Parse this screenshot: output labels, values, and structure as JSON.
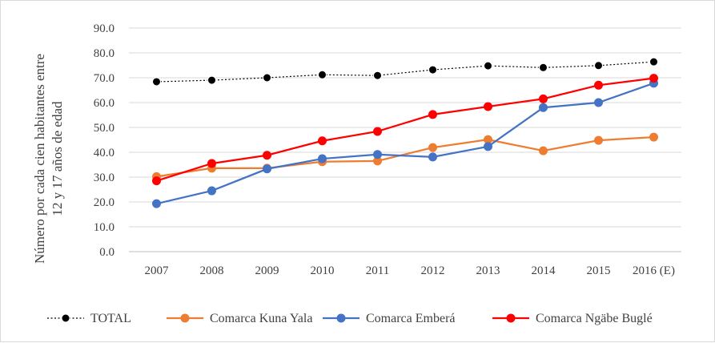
{
  "chart_data": {
    "type": "line",
    "categories": [
      "2007",
      "2008",
      "2009",
      "2010",
      "2011",
      "2012",
      "2013",
      "2014",
      "2015",
      "2016 (E)"
    ],
    "ylabel_line1": "Número por cada cien habitantes entre",
    "ylabel_line2": "12 y 17 años de edad",
    "ylim": [
      0,
      90
    ],
    "yticks": [
      "0.0",
      "10.0",
      "20.0",
      "30.0",
      "40.0",
      "50.0",
      "60.0",
      "70.0",
      "80.0",
      "90.0"
    ],
    "grid": true,
    "legend_position": "bottom",
    "series": [
      {
        "name": "TOTAL",
        "color": "#000000",
        "style": "dotted",
        "values": [
          68.4,
          69.0,
          70.0,
          71.2,
          70.9,
          73.2,
          74.8,
          74.1,
          74.9,
          76.4
        ]
      },
      {
        "name": "Comarca  Kuna Yala",
        "color": "#ed7d31",
        "style": "solid",
        "values": [
          30.2,
          33.6,
          33.6,
          36.2,
          36.5,
          41.9,
          45.1,
          40.6,
          44.8,
          46.1
        ]
      },
      {
        "name": "Comarca  Emberá",
        "color": "#4472c4",
        "style": "solid",
        "values": [
          19.3,
          24.5,
          33.3,
          37.4,
          39.1,
          38.1,
          42.3,
          58.0,
          60.0,
          67.8
        ]
      },
      {
        "name": "Comarca Ngäbe Buglé",
        "color": "#ff0000",
        "style": "solid",
        "values": [
          28.5,
          35.5,
          38.8,
          44.6,
          48.4,
          55.2,
          58.4,
          61.5,
          67.0,
          69.8
        ]
      }
    ]
  }
}
